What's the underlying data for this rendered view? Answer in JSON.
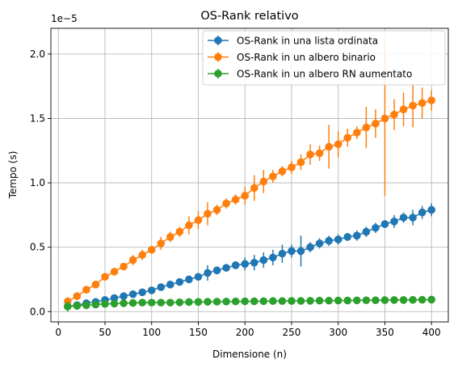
{
  "chart_data": {
    "type": "line",
    "title": "OS-Rank relativo",
    "xlabel": "Dimensione (n)",
    "ylabel": "Tempo (s)",
    "y_offset_label": "1e−5",
    "y_scale_note": "values in units of 1e-5 seconds",
    "xlim": [
      -8,
      418
    ],
    "ylim": [
      -0.08,
      2.2
    ],
    "x_ticks": [
      0,
      50,
      100,
      150,
      200,
      250,
      300,
      350,
      400
    ],
    "x_tick_labels": [
      "0",
      "50",
      "100",
      "150",
      "200",
      "250",
      "300",
      "350",
      "400"
    ],
    "y_ticks": [
      0.0,
      0.5,
      1.0,
      1.5,
      2.0
    ],
    "y_tick_labels": [
      "0.0",
      "0.5",
      "1.0",
      "1.5",
      "2.0"
    ],
    "grid": true,
    "legend_position": "top-right",
    "x": [
      10,
      20,
      30,
      40,
      50,
      60,
      70,
      80,
      90,
      100,
      110,
      120,
      130,
      140,
      150,
      160,
      170,
      180,
      190,
      200,
      210,
      220,
      230,
      240,
      250,
      260,
      270,
      280,
      290,
      300,
      310,
      320,
      330,
      340,
      350,
      360,
      370,
      380,
      390,
      400
    ],
    "series": [
      {
        "name": "OS-Rank in una lista ordinata",
        "color": "#1f77b4",
        "values": [
          0.04,
          0.05,
          0.065,
          0.075,
          0.09,
          0.105,
          0.12,
          0.135,
          0.15,
          0.165,
          0.19,
          0.21,
          0.23,
          0.25,
          0.27,
          0.3,
          0.32,
          0.34,
          0.36,
          0.37,
          0.38,
          0.4,
          0.42,
          0.45,
          0.47,
          0.47,
          0.5,
          0.53,
          0.55,
          0.56,
          0.58,
          0.59,
          0.62,
          0.65,
          0.68,
          0.7,
          0.73,
          0.73,
          0.77,
          0.79
        ],
        "errors": [
          0.02,
          0.02,
          0.02,
          0.02,
          0.02,
          0.02,
          0.02,
          0.02,
          0.02,
          0.02,
          0.02,
          0.02,
          0.02,
          0.02,
          0.02,
          0.06,
          0.03,
          0.03,
          0.03,
          0.05,
          0.06,
          0.06,
          0.06,
          0.07,
          0.05,
          0.12,
          0.04,
          0.04,
          0.04,
          0.04,
          0.03,
          0.04,
          0.04,
          0.04,
          0.03,
          0.05,
          0.04,
          0.06,
          0.05,
          0.05
        ]
      },
      {
        "name": "OS-Rank in un albero binario",
        "color": "#ff7f0e",
        "values": [
          0.08,
          0.12,
          0.17,
          0.21,
          0.27,
          0.31,
          0.35,
          0.4,
          0.44,
          0.48,
          0.53,
          0.58,
          0.62,
          0.67,
          0.71,
          0.76,
          0.79,
          0.84,
          0.87,
          0.9,
          0.96,
          1.01,
          1.05,
          1.09,
          1.12,
          1.16,
          1.22,
          1.23,
          1.28,
          1.3,
          1.35,
          1.39,
          1.43,
          1.46,
          1.5,
          1.53,
          1.57,
          1.6,
          1.62,
          1.64
        ],
        "errors": [
          0.02,
          0.02,
          0.02,
          0.02,
          0.02,
          0.02,
          0.02,
          0.04,
          0.04,
          0.03,
          0.05,
          0.04,
          0.04,
          0.07,
          0.07,
          0.09,
          0.04,
          0.04,
          0.04,
          0.07,
          0.1,
          0.09,
          0.05,
          0.04,
          0.05,
          0.06,
          0.08,
          0.06,
          0.17,
          0.1,
          0.07,
          0.05,
          0.16,
          0.11,
          0.6,
          0.12,
          0.13,
          0.17,
          0.12,
          0.08
        ]
      },
      {
        "name": "OS-Rank in un albero RN aumentato",
        "color": "#2ca02c",
        "values": [
          0.04,
          0.045,
          0.05,
          0.055,
          0.06,
          0.062,
          0.065,
          0.067,
          0.07,
          0.07,
          0.07,
          0.07,
          0.072,
          0.074,
          0.075,
          0.076,
          0.077,
          0.078,
          0.079,
          0.08,
          0.08,
          0.081,
          0.082,
          0.082,
          0.083,
          0.083,
          0.084,
          0.085,
          0.085,
          0.086,
          0.086,
          0.087,
          0.088,
          0.088,
          0.089,
          0.09,
          0.09,
          0.091,
          0.092,
          0.093
        ],
        "errors": [
          0.04,
          0.03,
          0.03,
          0.02,
          0.02,
          0.02,
          0.02,
          0.02,
          0.02,
          0.02,
          0.02,
          0.02,
          0.02,
          0.02,
          0.02,
          0.02,
          0.02,
          0.02,
          0.02,
          0.02,
          0.02,
          0.02,
          0.02,
          0.02,
          0.02,
          0.02,
          0.02,
          0.02,
          0.02,
          0.02,
          0.02,
          0.02,
          0.02,
          0.02,
          0.02,
          0.02,
          0.02,
          0.02,
          0.02,
          0.02
        ]
      }
    ]
  }
}
